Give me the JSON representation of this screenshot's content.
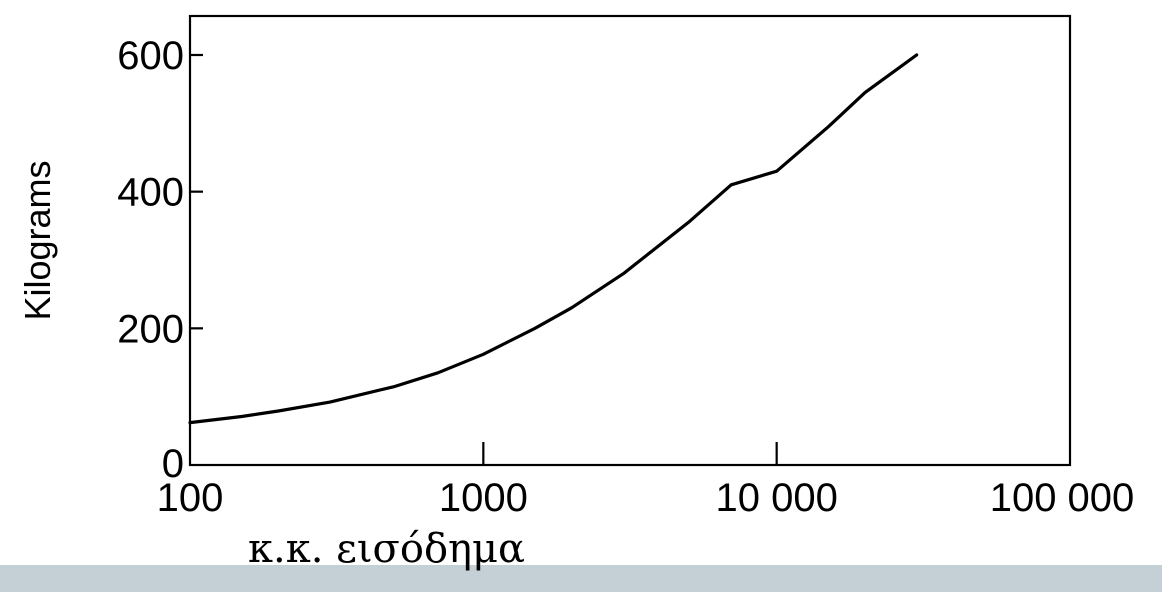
{
  "chart_data": {
    "type": "line",
    "ylabel": "Kilograms",
    "xscale": "log",
    "xlim": [
      100,
      100000
    ],
    "ylim": [
      0,
      650
    ],
    "xticks": [
      {
        "value": 100,
        "label": "100"
      },
      {
        "value": 1000,
        "label": "1000"
      },
      {
        "value": 10000,
        "label": "10 000"
      },
      {
        "value": 100000,
        "label": "100 000"
      }
    ],
    "yticks": [
      {
        "value": 0,
        "label": "0"
      },
      {
        "value": 200,
        "label": "200"
      },
      {
        "value": 400,
        "label": "400"
      },
      {
        "value": 600,
        "label": "600"
      }
    ],
    "grid": false,
    "legend": "none",
    "series": [
      {
        "color": "#000000",
        "x": [
          100,
          150,
          200,
          300,
          500,
          700,
          1000,
          1500,
          2000,
          3000,
          5000,
          7000,
          10000,
          15000,
          20000,
          30000
        ],
        "y": [
          62,
          71,
          79,
          92,
          115,
          135,
          162,
          200,
          230,
          280,
          355,
          410,
          430,
          495,
          545,
          600
        ]
      }
    ]
  },
  "caption": "κ.κ. εισόδημα"
}
